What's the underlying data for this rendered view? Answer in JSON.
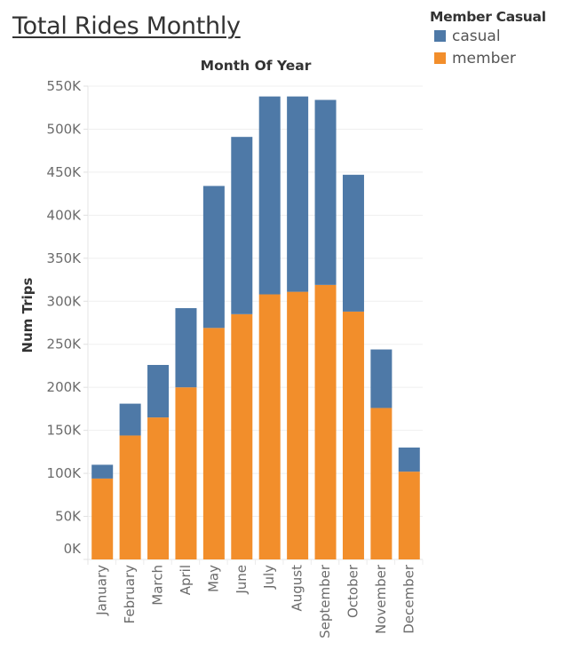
{
  "title": "Total Rides Monthly",
  "legend": {
    "title": "Member Casual",
    "items": [
      {
        "label": "casual",
        "color": "#4e79a7"
      },
      {
        "label": "member",
        "color": "#f28e2b"
      }
    ]
  },
  "chart_data": {
    "type": "bar",
    "stacked": true,
    "title": "Total Rides Monthly",
    "column_header": "Month Of Year",
    "xlabel": "",
    "ylabel": "Num Trips",
    "ylim": [
      0,
      550000
    ],
    "yticks": [
      0,
      50000,
      100000,
      150000,
      200000,
      250000,
      300000,
      350000,
      400000,
      450000,
      500000,
      550000
    ],
    "ytick_labels": [
      "0K",
      "50K",
      "100K",
      "150K",
      "200K",
      "250K",
      "300K",
      "350K",
      "400K",
      "450K",
      "500K",
      "550K"
    ],
    "grid": true,
    "legend_position": "top-right",
    "categories": [
      "January",
      "February",
      "March",
      "April",
      "May",
      "June",
      "July",
      "August",
      "September",
      "October",
      "November",
      "December"
    ],
    "series": [
      {
        "name": "member",
        "color": "#f28e2b",
        "values": [
          94000,
          144000,
          165000,
          200000,
          269000,
          285000,
          308000,
          311000,
          319000,
          288000,
          176000,
          102000
        ]
      },
      {
        "name": "casual",
        "color": "#4e79a7",
        "values": [
          16000,
          37000,
          61000,
          92000,
          165000,
          206000,
          230000,
          227000,
          215000,
          159000,
          68000,
          28000
        ]
      }
    ]
  }
}
